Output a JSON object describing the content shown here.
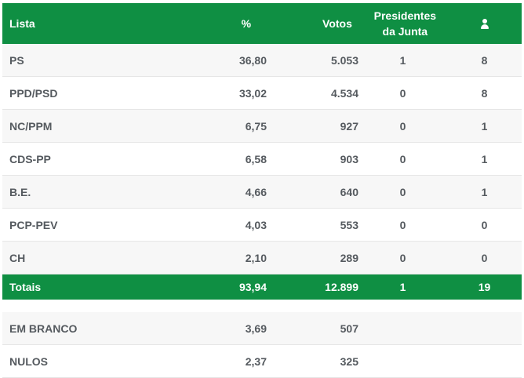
{
  "header": {
    "lista": "Lista",
    "pct": "%",
    "votos": "Votos",
    "presidentes_line1": "Presidentes",
    "presidentes_line2": "da Junta",
    "mandates_icon": "person-icon"
  },
  "rows": [
    {
      "lista": "PS",
      "pct": "36,80",
      "votos": "5.053",
      "presidentes": "1",
      "mandatos": "8"
    },
    {
      "lista": "PPD/PSD",
      "pct": "33,02",
      "votos": "4.534",
      "presidentes": "0",
      "mandatos": "8"
    },
    {
      "lista": "NC/PPM",
      "pct": "6,75",
      "votos": "927",
      "presidentes": "0",
      "mandatos": "1"
    },
    {
      "lista": "CDS-PP",
      "pct": "6,58",
      "votos": "903",
      "presidentes": "0",
      "mandatos": "1"
    },
    {
      "lista": "B.E.",
      "pct": "4,66",
      "votos": "640",
      "presidentes": "0",
      "mandatos": "1"
    },
    {
      "lista": "PCP-PEV",
      "pct": "4,03",
      "votos": "553",
      "presidentes": "0",
      "mandatos": "0"
    },
    {
      "lista": "CH",
      "pct": "2,10",
      "votos": "289",
      "presidentes": "0",
      "mandatos": "0"
    }
  ],
  "totals": {
    "label": "Totais",
    "pct": "93,94",
    "votos": "12.899",
    "presidentes": "1",
    "mandatos": "19"
  },
  "extra": [
    {
      "lista": "EM BRANCO",
      "pct": "3,69",
      "votos": "507"
    },
    {
      "lista": "NULOS",
      "pct": "2,37",
      "votos": "325"
    }
  ],
  "colors": {
    "accent": "#0f8f43",
    "text": "#555a5f",
    "stripe": "#f7f7f7"
  }
}
